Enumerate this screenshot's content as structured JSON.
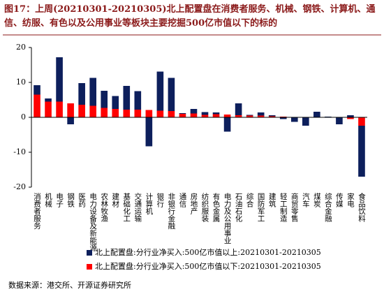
{
  "chart_data": {
    "type": "bar",
    "stacked": true,
    "title": "图17：上周(20210301-20210305)北上配置盘在消费者服务、机械、钢铁、计算机、通信、纺服、有色以及公用事业等板块主要挖掘500亿市值以下的标的",
    "categories": [
      "消费者服务",
      "机械",
      "电子",
      "钢铁",
      "医药",
      "电力设备及新能源",
      "农林牧渔",
      "建材",
      "基础化工",
      "交通运输",
      "计算机",
      "银行",
      "非银行金融",
      "通信",
      "房地产",
      "纺织服装",
      "有色金属",
      "电力及公用事业",
      "石油石化",
      "综合",
      "国防军工",
      "建筑",
      "轻工制造",
      "商贸零售",
      "汽车",
      "煤炭",
      "综合金融",
      "传媒",
      "家电",
      "食品饮料"
    ],
    "series": [
      {
        "name": "北上配置盘:分行业净买入:500亿市值以上:20210301-20210305",
        "color": "#0d1f5c",
        "values": [
          2.7,
          0.9,
          12.7,
          -2.0,
          6.2,
          8.0,
          4.9,
          3.7,
          6.8,
          5.3,
          -8.3,
          11.2,
          9.5,
          0.2,
          1.3,
          0.8,
          0.5,
          -4.1,
          3.4,
          0.2,
          0.9,
          0.3,
          -0.5,
          -1.3,
          -2.4,
          1.5,
          0.1,
          -1.9,
          0.6,
          -14.6
        ]
      },
      {
        "name": "北上配置盘:分行业净买入:500亿市值以下:20210301-20210305",
        "color": "#ff0000",
        "values": [
          6.5,
          4.5,
          4.5,
          4.0,
          3.6,
          3.3,
          2.7,
          2.4,
          2.2,
          2.2,
          2.1,
          1.9,
          1.8,
          1.0,
          1.1,
          0.7,
          0.9,
          0.8,
          0.6,
          0.5,
          0.5,
          0.3,
          0.2,
          0.1,
          0.1,
          0.1,
          0.1,
          -0.1,
          -0.5,
          -2.4
        ]
      }
    ],
    "ylim": [
      -20,
      20
    ],
    "yticks": [
      -20,
      -10,
      0,
      10,
      20
    ],
    "source": "数据来源：港交所、开源证券研究所"
  }
}
